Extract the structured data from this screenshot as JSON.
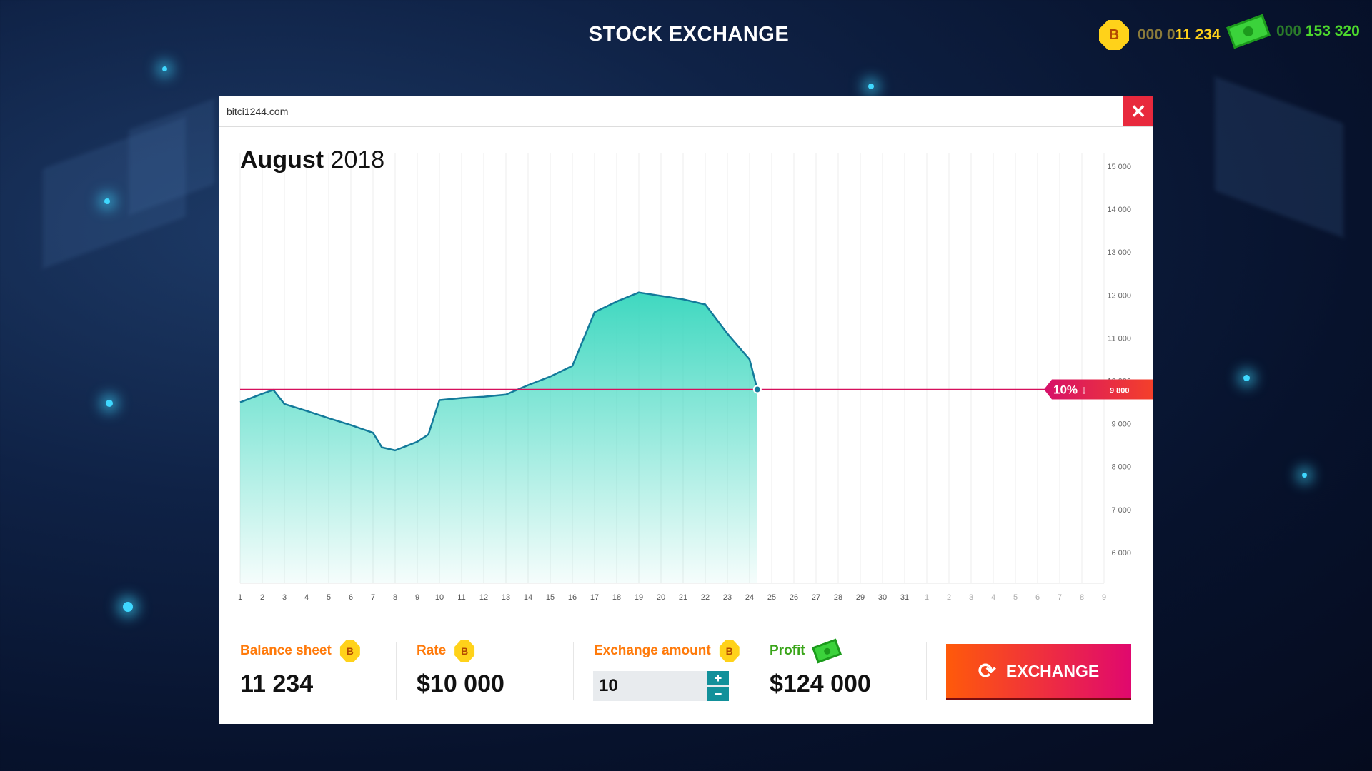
{
  "title": "STOCK EXCHANGE",
  "wallet": {
    "bitcoin_dim": "000 0",
    "bitcoin": "11 234",
    "cash_dim": "000 ",
    "cash": "153 320",
    "coin_symbol": "B"
  },
  "window": {
    "url": "bitci1244.com",
    "close": "✕"
  },
  "colors": {
    "accent": "#e8293d",
    "area": "#3fd8c0",
    "line": "#137a9a",
    "current": "#d6105c"
  },
  "chart_data": {
    "type": "area",
    "title_month": "August",
    "title_year": "2018",
    "x_labels": [
      "1",
      "2",
      "3",
      "4",
      "5",
      "6",
      "7",
      "8",
      "9",
      "10",
      "11",
      "12",
      "13",
      "14",
      "15",
      "16",
      "17",
      "18",
      "19",
      "20",
      "21",
      "22",
      "23",
      "24",
      "25",
      "26",
      "27",
      "28",
      "29",
      "30",
      "31",
      "1",
      "2",
      "3",
      "4",
      "5",
      "6",
      "7",
      "8",
      "9"
    ],
    "y_ticks": [
      15000,
      14000,
      13000,
      12000,
      11000,
      10000,
      9000,
      8000,
      7000,
      6000
    ],
    "y_tick_labels": [
      "15 000",
      "14 000",
      "13 000",
      "12 000",
      "11 000",
      "10 000",
      "9 000",
      "8 000",
      "7 000",
      "6 000"
    ],
    "ylim": [
      5300,
      15000
    ],
    "x": [
      1,
      2,
      2.5,
      3,
      4,
      5,
      6,
      7,
      7.4,
      8,
      9,
      9.5,
      10,
      11,
      12,
      13,
      14,
      15,
      16,
      17,
      18,
      19,
      20,
      21,
      22,
      23,
      24,
      24.35
    ],
    "values": [
      9500,
      9700,
      9790,
      9460,
      9300,
      9130,
      8970,
      8790,
      8450,
      8380,
      8580,
      8750,
      9550,
      9600,
      9630,
      9680,
      9900,
      10100,
      10350,
      11600,
      11850,
      12060,
      11980,
      11900,
      11780,
      11100,
      10500,
      9800
    ],
    "current": {
      "value": 9800,
      "value_label": "9 800",
      "change": "10%",
      "direction": "↓"
    }
  },
  "bottom": {
    "balance_label": "Balance sheet",
    "balance": "11 234",
    "rate_label": "Rate",
    "rate": "$10 000",
    "amount_label": "Exchange amount",
    "amount": "10",
    "plus": "+",
    "minus": "−",
    "profit_label": "Profit",
    "profit": "$124 000",
    "exchange": "EXCHANGE",
    "exchange_icon": "⟳"
  }
}
